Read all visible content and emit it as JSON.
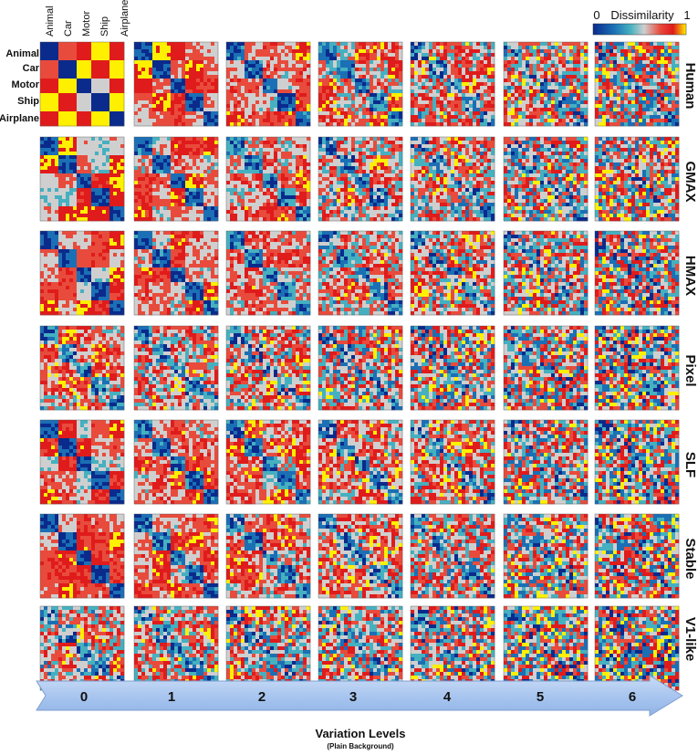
{
  "chart_data": {
    "type": "heatmap",
    "categories": [
      "Animal",
      "Car",
      "Motor",
      "Ship",
      "Airplane"
    ],
    "models": [
      "Human",
      "GMAX",
      "HMAX",
      "Pixel",
      "SLF",
      "Stable",
      "V1-like"
    ],
    "variation_levels": [
      "0",
      "1",
      "2",
      "3",
      "4",
      "5",
      "6"
    ],
    "colorbar": {
      "min_label": "0",
      "title": "Dissimilarity",
      "max_label": "1",
      "colors": [
        "#0a2a8c",
        "#1b6fb5",
        "#45b0c0",
        "#cfcfcf",
        "#e84b3c",
        "#e01b1b",
        "#fff000"
      ]
    },
    "xlabel": "Variation Levels",
    "xlabel_sub": "(Plain Background)"
  }
}
